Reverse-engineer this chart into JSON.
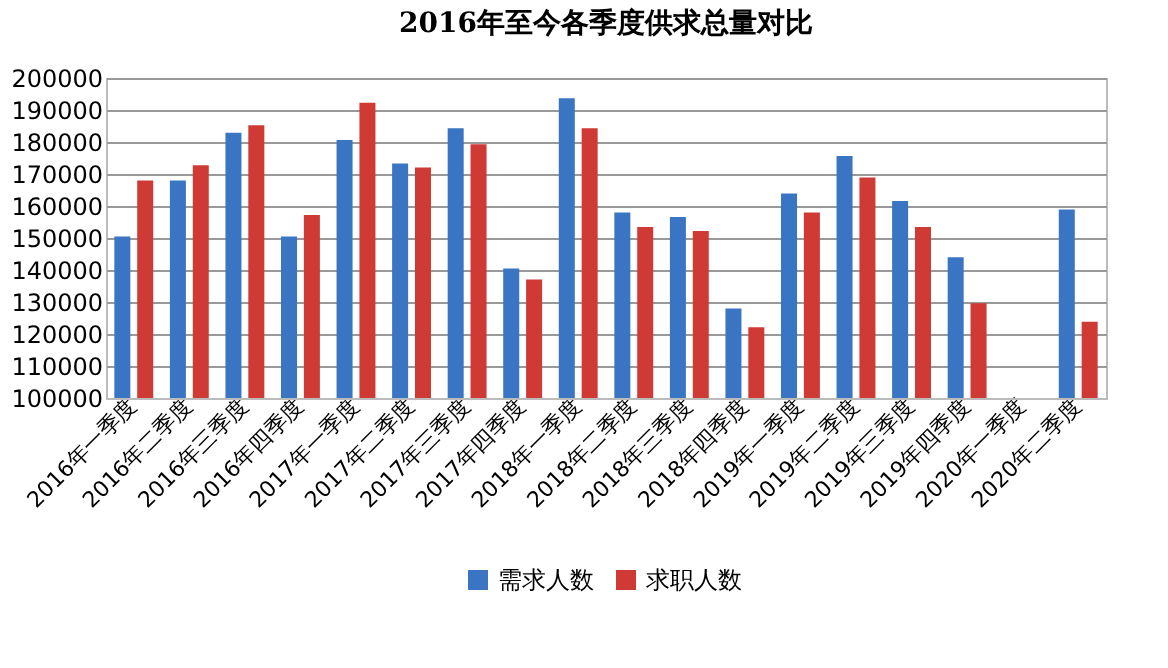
{
  "chart_data": {
    "type": "bar",
    "title": "2016年至今各季度供求总量对比",
    "categories": [
      "2016年一季度",
      "2016年二季度",
      "2016年三季度",
      "2016年四季度",
      "2017年一季度",
      "2017年二季度",
      "2017年三季度",
      "2017年四季度",
      "2018年一季度",
      "2018年二季度",
      "2018年三季度",
      "2018年四季度",
      "2019年一季度",
      "2019年二季度",
      "2019年三季度",
      "2019年四季度",
      "2020年一季度",
      "2020年二季度"
    ],
    "series": [
      {
        "name": "需求人数",
        "color": "#3a75c4",
        "values": [
          150500,
          168000,
          182900,
          150500,
          180600,
          173300,
          184300,
          140500,
          193700,
          158000,
          156600,
          128000,
          163900,
          175600,
          161600,
          144000,
          null,
          158900
        ]
      },
      {
        "name": "求职人数",
        "color": "#d03a35",
        "values": [
          168000,
          172700,
          185200,
          157200,
          192300,
          172000,
          179300,
          137000,
          184300,
          153400,
          152200,
          122100,
          158000,
          168900,
          153400,
          129600,
          null,
          123800
        ]
      }
    ],
    "ylim": [
      100000,
      200000
    ],
    "yticks": [
      100000,
      110000,
      120000,
      130000,
      140000,
      150000,
      160000,
      170000,
      180000,
      190000,
      200000
    ],
    "grid": "y",
    "legend": "bottom"
  }
}
